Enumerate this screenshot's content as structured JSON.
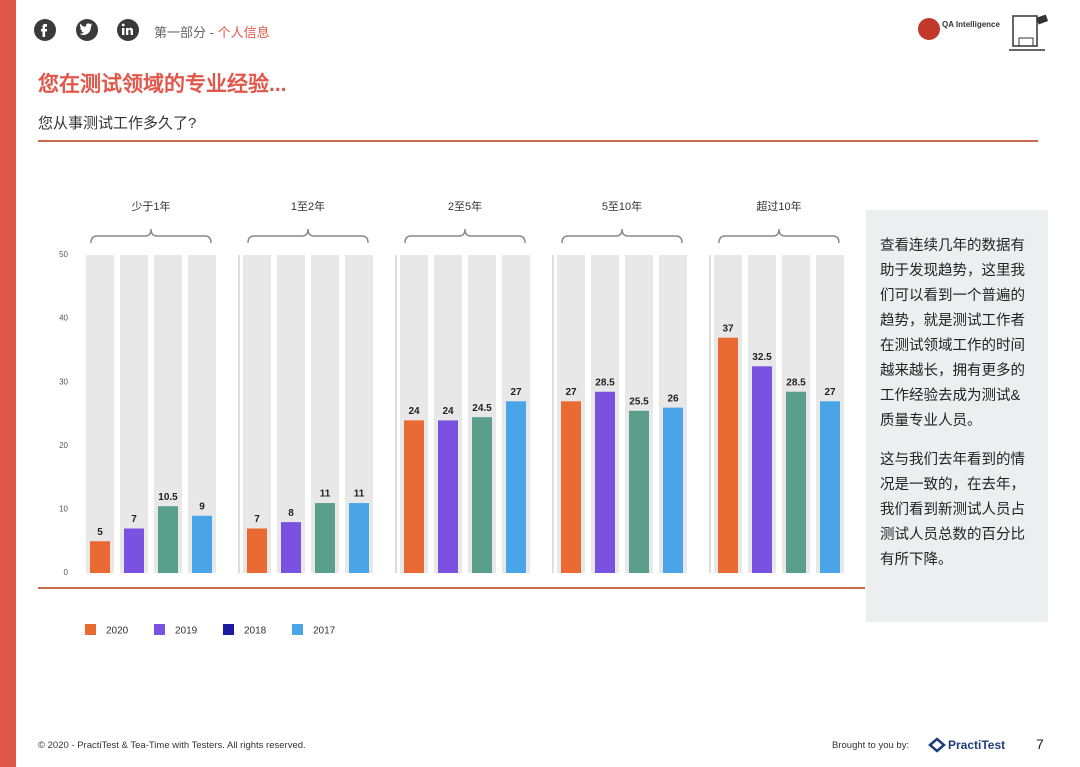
{
  "header": {
    "section_prefix": "第一部分 - ",
    "section": "个人信息",
    "logo": "QA Intelligence"
  },
  "title": "您在测试领域的专业经验...",
  "subtitle": "您从事测试工作多久了?",
  "chart_data": {
    "type": "bar",
    "categories": [
      "少于1年",
      "1至2年",
      "2至5年",
      "5至10年",
      "超过10年"
    ],
    "series": [
      {
        "name": "2020",
        "color": "#ea6a34",
        "legend_color": "#ea6a34",
        "values": [
          5,
          7,
          24,
          27,
          37
        ]
      },
      {
        "name": "2019",
        "color": "#7b52e0",
        "legend_color": "#7b52e0",
        "values": [
          7,
          8,
          24,
          28.5,
          32.5
        ]
      },
      {
        "name": "2018",
        "color": "#5a9e8c",
        "legend_color": "#1b1b9c",
        "values": [
          10.5,
          11,
          24.5,
          25.5,
          28.5
        ]
      },
      {
        "name": "2017",
        "color": "#4aa5e8",
        "legend_color": "#4aa5e8",
        "values": [
          9,
          11,
          27,
          26,
          27
        ]
      }
    ],
    "ylim": [
      0,
      50
    ],
    "yticks": [
      0,
      10,
      20,
      30,
      40,
      50
    ],
    "grid": false
  },
  "sidebar": {
    "paragraphs": [
      "查看连续几年的数据有助于发现趋势，这里我们可以看到一个普遍的趋势，就是测试工作者在测试领域工作的时间越来越长，拥有更多的工作经验去成为测试&质量专业人员。",
      "这与我们去年看到的情况是一致的，在去年，我们看到新测试人员占测试人员总数的百分比有所下降。"
    ]
  },
  "footer": {
    "copyright": "© 2020 - PractiTest & Tea-Time with Testers. All rights reserved.",
    "brought_by": "Brought to you by:",
    "brand": "PractiTest",
    "page": "7"
  }
}
